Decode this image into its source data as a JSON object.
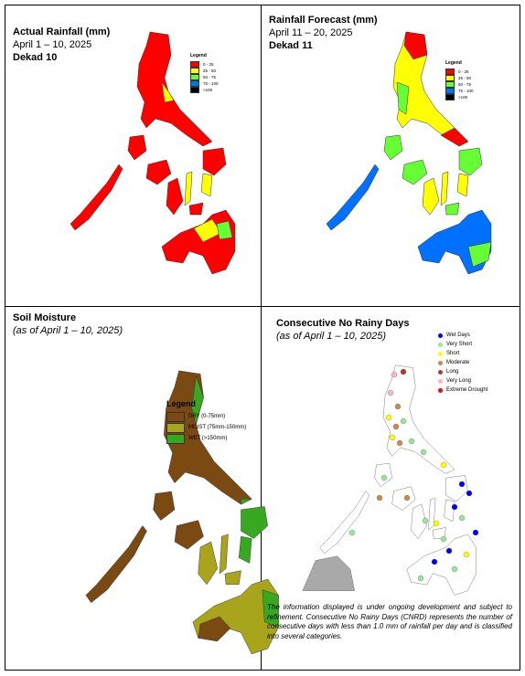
{
  "panels": [
    {
      "title": "Actual Rainfall (mm)",
      "subtitle": "April 1 – 10, 2025",
      "dekad": "Dekad 10",
      "legend": {
        "title": "Legend",
        "items": [
          {
            "label": "0 - 25",
            "color": "#ff0000"
          },
          {
            "label": "25 - 50",
            "color": "#ffff00"
          },
          {
            "label": "50 - 75",
            "color": "#66ff33"
          },
          {
            "label": "75 - 100",
            "color": "#0070ff"
          },
          {
            "label": ">100",
            "color": "#000000"
          }
        ]
      }
    },
    {
      "title": "Rainfall Forecast (mm)",
      "subtitle": "April 11 – 20, 2025",
      "dekad": "Dekad 11",
      "legend": {
        "title": "Legend",
        "items": [
          {
            "label": "0 - 25",
            "color": "#ff0000"
          },
          {
            "label": "25 - 50",
            "color": "#ffff00"
          },
          {
            "label": "50 - 75",
            "color": "#66ff33"
          },
          {
            "label": "75 - 100",
            "color": "#0070ff"
          },
          {
            "label": ">100",
            "color": "#000000"
          }
        ]
      }
    },
    {
      "title": "Soil Moisture",
      "subtitle": "(as of April 1 – 10, 2025)",
      "legend": {
        "title": "Legend",
        "items": [
          {
            "label": "DRY (0-75mm)",
            "color": "#7b4a12"
          },
          {
            "label": "MOIST (75mm-150mm)",
            "color": "#a8a41c"
          },
          {
            "label": "WET (>150mm)",
            "color": "#38a820"
          }
        ]
      }
    },
    {
      "title": "Consecutive No Rainy Days",
      "subtitle": "(as of April 1 – 10, 2025)",
      "legend": {
        "items": [
          {
            "label": "Wet Days",
            "color": "#0000ff"
          },
          {
            "label": "Very Short",
            "color": "#98e698"
          },
          {
            "label": "Short",
            "color": "#ffff00"
          },
          {
            "label": "Moderate",
            "color": "#c98a4b"
          },
          {
            "label": "Long",
            "color": "#a0412a"
          },
          {
            "label": "Very Long",
            "color": "#f4b6c8"
          },
          {
            "label": "Extreme Drought",
            "color": "#ff0000"
          }
        ]
      },
      "note": "The information displayed is under ongoing development and subject to refinement. Consecutive No Rainy Days (CNRD) represents the number of consecutive days with less than 1.0 mm of rainfall per day and is classified into several categories."
    }
  ]
}
